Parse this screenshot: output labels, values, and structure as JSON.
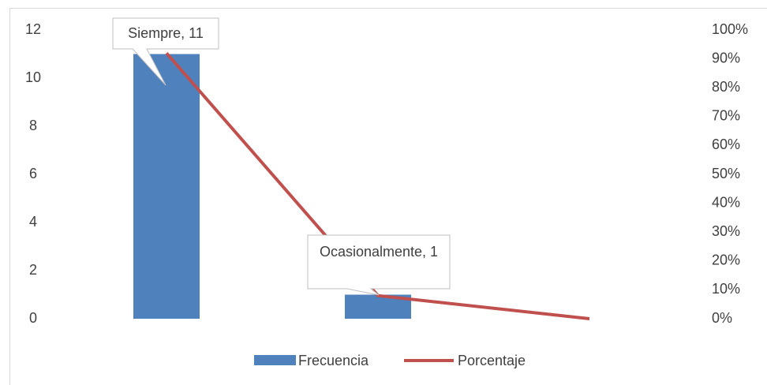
{
  "chart_data": {
    "type": "bar-line",
    "categories": [
      "Siempre",
      "Ocasionalmente",
      null
    ],
    "series": [
      {
        "name": "Frecuencia",
        "type": "bar",
        "color": "#4f81bd",
        "values": [
          11,
          1,
          0
        ],
        "value_labels": [
          "Siempre, 11",
          "Ocasionalmente, 1",
          null
        ]
      },
      {
        "name": "Porcentaje",
        "type": "line",
        "color": "#c0504d",
        "axis": "y2",
        "values": [
          92,
          8,
          0
        ]
      }
    ],
    "ylim": [
      0,
      12
    ],
    "yticks": [
      0,
      2,
      4,
      6,
      8,
      10,
      12
    ],
    "y2lim": [
      0,
      100
    ],
    "y2ticks": [
      {
        "value": 0,
        "label": "0%"
      },
      {
        "value": 10,
        "label": "10%"
      },
      {
        "value": 20,
        "label": "20%"
      },
      {
        "value": 30,
        "label": "30%"
      },
      {
        "value": 40,
        "label": "40%"
      },
      {
        "value": 50,
        "label": "50%"
      },
      {
        "value": 60,
        "label": "60%"
      },
      {
        "value": 70,
        "label": "70%"
      },
      {
        "value": 80,
        "label": "80%"
      },
      {
        "value": 90,
        "label": "90%"
      },
      {
        "value": 100,
        "label": "100%"
      }
    ],
    "legend": "bottom",
    "grid": false
  }
}
